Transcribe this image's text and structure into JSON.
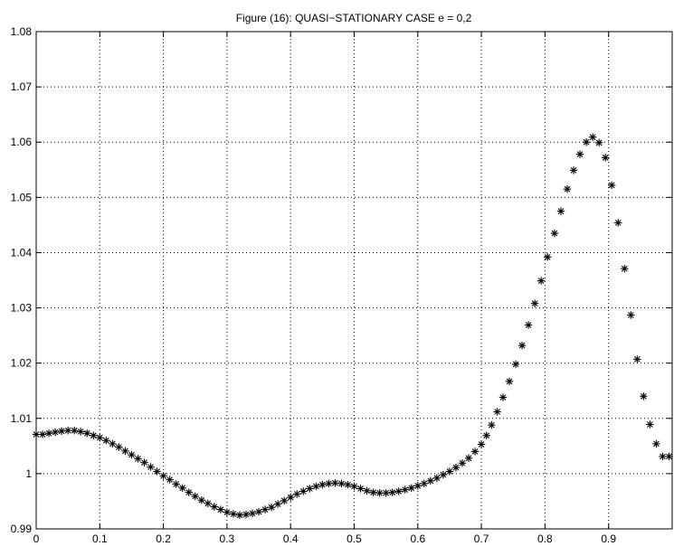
{
  "chart_data": {
    "type": "scatter",
    "title": "Figure (16): QUASI−STATIONARY CASE   e = 0,2",
    "xlabel": "",
    "ylabel": "",
    "xlim": [
      0,
      1
    ],
    "ylim": [
      0.99,
      1.08
    ],
    "grid": true,
    "marker": "*",
    "marker_color": "#000000",
    "x_ticks": [
      {
        "value": 0,
        "label": "0"
      },
      {
        "value": 0.1,
        "label": "0.1"
      },
      {
        "value": 0.2,
        "label": "0.2"
      },
      {
        "value": 0.3,
        "label": "0.3"
      },
      {
        "value": 0.4,
        "label": "0.4"
      },
      {
        "value": 0.5,
        "label": "0.5"
      },
      {
        "value": 0.6,
        "label": "0.6"
      },
      {
        "value": 0.7,
        "label": "0.7"
      },
      {
        "value": 0.8,
        "label": "0.8"
      },
      {
        "value": 0.9,
        "label": "0.9"
      }
    ],
    "y_ticks": [
      {
        "value": 0.99,
        "label": "0.99"
      },
      {
        "value": 1.0,
        "label": "1"
      },
      {
        "value": 1.01,
        "label": "1.01"
      },
      {
        "value": 1.02,
        "label": "1.02"
      },
      {
        "value": 1.03,
        "label": "1.03"
      },
      {
        "value": 1.04,
        "label": "1.04"
      },
      {
        "value": 1.05,
        "label": "1.05"
      },
      {
        "value": 1.06,
        "label": "1.06"
      },
      {
        "value": 1.07,
        "label": "1.07"
      },
      {
        "value": 1.08,
        "label": "1.08"
      }
    ],
    "series": [
      {
        "points": [
          [
            0.0,
            1.0071
          ],
          [
            0.01,
            1.0071
          ],
          [
            0.02,
            1.0073
          ],
          [
            0.03,
            1.0075
          ],
          [
            0.04,
            1.0077
          ],
          [
            0.05,
            1.0078
          ],
          [
            0.06,
            1.0078
          ],
          [
            0.07,
            1.0076
          ],
          [
            0.08,
            1.0073
          ],
          [
            0.09,
            1.0069
          ],
          [
            0.1,
            1.0065
          ],
          [
            0.11,
            1.006
          ],
          [
            0.12,
            1.0054
          ],
          [
            0.13,
            1.0048
          ],
          [
            0.14,
            1.0041
          ],
          [
            0.15,
            1.0034
          ],
          [
            0.16,
            1.0027
          ],
          [
            0.17,
            1.002
          ],
          [
            0.18,
            1.0012
          ],
          [
            0.19,
            1.0004
          ],
          [
            0.2,
            0.9996
          ],
          [
            0.21,
            0.9989
          ],
          [
            0.22,
            0.9981
          ],
          [
            0.23,
            0.9974
          ],
          [
            0.24,
            0.9966
          ],
          [
            0.25,
            0.9959
          ],
          [
            0.26,
            0.9952
          ],
          [
            0.27,
            0.9946
          ],
          [
            0.28,
            0.994
          ],
          [
            0.29,
            0.9935
          ],
          [
            0.3,
            0.993
          ],
          [
            0.31,
            0.9927
          ],
          [
            0.32,
            0.9925
          ],
          [
            0.33,
            0.9926
          ],
          [
            0.34,
            0.9928
          ],
          [
            0.35,
            0.9931
          ],
          [
            0.36,
            0.9935
          ],
          [
            0.37,
            0.9939
          ],
          [
            0.38,
            0.9945
          ],
          [
            0.39,
            0.9951
          ],
          [
            0.4,
            0.9957
          ],
          [
            0.41,
            0.9963
          ],
          [
            0.42,
            0.9968
          ],
          [
            0.43,
            0.9973
          ],
          [
            0.44,
            0.9977
          ],
          [
            0.45,
            0.998
          ],
          [
            0.46,
            0.9982
          ],
          [
            0.47,
            0.9983
          ],
          [
            0.48,
            0.9982
          ],
          [
            0.49,
            0.998
          ],
          [
            0.5,
            0.9977
          ],
          [
            0.51,
            0.9973
          ],
          [
            0.52,
            0.9969
          ],
          [
            0.53,
            0.9966
          ],
          [
            0.54,
            0.9965
          ],
          [
            0.55,
            0.9965
          ],
          [
            0.56,
            0.9966
          ],
          [
            0.57,
            0.9968
          ],
          [
            0.58,
            0.9971
          ],
          [
            0.59,
            0.9974
          ],
          [
            0.6,
            0.9978
          ],
          [
            0.61,
            0.9982
          ],
          [
            0.62,
            0.9987
          ],
          [
            0.63,
            0.9992
          ],
          [
            0.64,
            0.9998
          ],
          [
            0.65,
            1.0004
          ],
          [
            0.66,
            1.0011
          ],
          [
            0.67,
            1.0019
          ],
          [
            0.68,
            1.0028
          ],
          [
            0.69,
            1.004
          ],
          [
            0.7,
            1.0053
          ],
          [
            0.708,
            1.0069
          ],
          [
            0.716,
            1.0088
          ],
          [
            0.725,
            1.0112
          ],
          [
            0.734,
            1.0138
          ],
          [
            0.744,
            1.0167
          ],
          [
            0.754,
            1.0198
          ],
          [
            0.764,
            1.0232
          ],
          [
            0.774,
            1.0269
          ],
          [
            0.784,
            1.0308
          ],
          [
            0.794,
            1.0349
          ],
          [
            0.804,
            1.0392
          ],
          [
            0.815,
            1.0435
          ],
          [
            0.825,
            1.0475
          ],
          [
            0.835,
            1.0515
          ],
          [
            0.845,
            1.0549
          ],
          [
            0.855,
            1.0578
          ],
          [
            0.865,
            1.06
          ],
          [
            0.875,
            1.0609
          ],
          [
            0.885,
            1.0599
          ],
          [
            0.895,
            1.0572
          ],
          [
            0.905,
            1.0522
          ],
          [
            0.915,
            1.0454
          ],
          [
            0.925,
            1.0371
          ],
          [
            0.935,
            1.0287
          ],
          [
            0.945,
            1.0207
          ],
          [
            0.955,
            1.014
          ],
          [
            0.965,
            1.0089
          ],
          [
            0.975,
            1.0054
          ],
          [
            0.985,
            1.0031
          ],
          [
            0.995,
            1.0031
          ]
        ]
      }
    ]
  }
}
